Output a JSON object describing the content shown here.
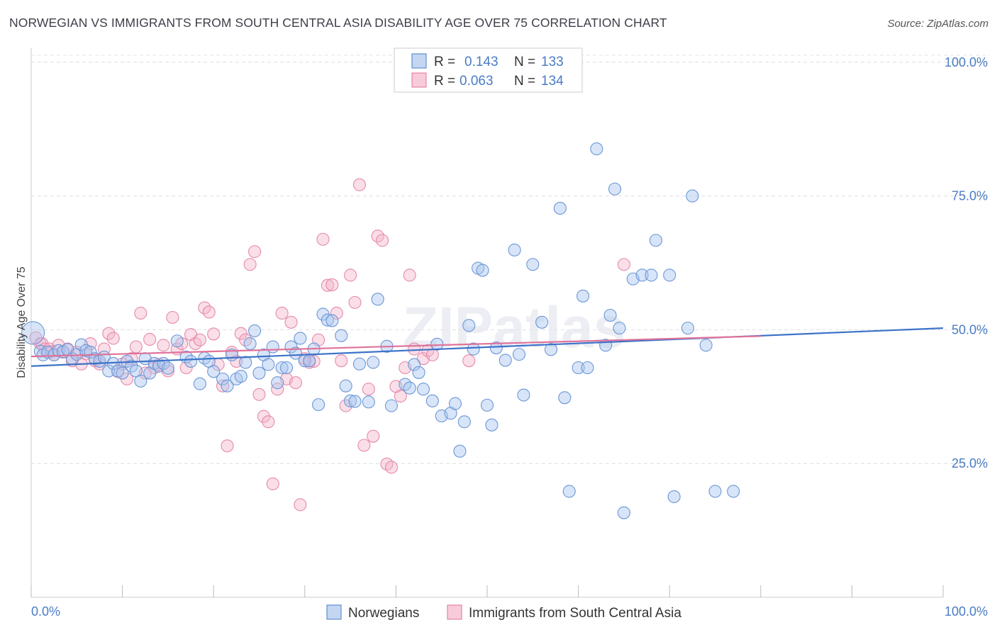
{
  "title": "NORWEGIAN VS IMMIGRANTS FROM SOUTH CENTRAL ASIA DISABILITY AGE OVER 75 CORRELATION CHART",
  "source": "Source: ZipAtlas.com",
  "watermark": "ZIPatlas",
  "colors": {
    "blue": "#4a7cc4",
    "blue_fill": "#a8c6ef",
    "pink": "#e0739a",
    "pink_fill": "#f5b6cc",
    "grid": "#dddddd",
    "label": "#4a7cc4"
  },
  "legend": {
    "entries": [
      {
        "r_label": "R =",
        "r_value": "0.143",
        "n_label": "N =",
        "n_value": "133",
        "color": "blue"
      },
      {
        "r_label": "R =",
        "r_value": "0.063",
        "n_label": "N =",
        "n_value": "134",
        "color": "pink"
      }
    ]
  },
  "bottom_legend": [
    "Norwegians",
    "Immigrants from South Central Asia"
  ],
  "chart_data": {
    "type": "scatter",
    "xlabel": "",
    "ylabel": "Disability Age Over 75",
    "xlim": [
      0,
      100
    ],
    "ylim": [
      0,
      105
    ],
    "x_tick_labels": [
      "0.0%",
      "100.0%"
    ],
    "y_tick_labels": [
      "100.0%",
      "75.0%",
      "50.0%",
      "25.0%"
    ],
    "y_ticks": [
      100,
      75,
      50,
      25
    ],
    "grid": true,
    "series": [
      {
        "name": "Norwegians",
        "color": "blue",
        "trend": [
          [
            0,
            43.2
          ],
          [
            100,
            50.3
          ]
        ],
        "points": [
          [
            0.2,
            49.4
          ],
          [
            1,
            46
          ],
          [
            1.3,
            45.3
          ],
          [
            1.8,
            45.8
          ],
          [
            2.5,
            45.3
          ],
          [
            3,
            46.1
          ],
          [
            3.5,
            45.9
          ],
          [
            4,
            46.3
          ],
          [
            4.5,
            44.6
          ],
          [
            5,
            45.4
          ],
          [
            5.5,
            47.2
          ],
          [
            6,
            46.1
          ],
          [
            6.5,
            45.8
          ],
          [
            7,
            44.6
          ],
          [
            7.5,
            44.1
          ],
          [
            8,
            44.9
          ],
          [
            8.5,
            42.3
          ],
          [
            9,
            43.7
          ],
          [
            9.5,
            42.3
          ],
          [
            10,
            41.9
          ],
          [
            10.5,
            44.1
          ],
          [
            11,
            43.2
          ],
          [
            11.5,
            42.3
          ],
          [
            12,
            40.4
          ],
          [
            12.5,
            44.6
          ],
          [
            13,
            41.9
          ],
          [
            13.5,
            43.7
          ],
          [
            14,
            43.2
          ],
          [
            14.5,
            43.7
          ],
          [
            15,
            42.8
          ],
          [
            16,
            47.9
          ],
          [
            17,
            44.9
          ],
          [
            17.5,
            44.1
          ],
          [
            18.5,
            39.9
          ],
          [
            19,
            44.7
          ],
          [
            19.5,
            44.1
          ],
          [
            20,
            42.2
          ],
          [
            21,
            40.8
          ],
          [
            21.5,
            39.5
          ],
          [
            22,
            45.3
          ],
          [
            22.5,
            40.8
          ],
          [
            23,
            41.3
          ],
          [
            23.5,
            43.9
          ],
          [
            24,
            47.4
          ],
          [
            24.5,
            49.8
          ],
          [
            25,
            41.9
          ],
          [
            25.5,
            45.3
          ],
          [
            26,
            43.5
          ],
          [
            26.5,
            46.8
          ],
          [
            27,
            40.1
          ],
          [
            27.5,
            42.9
          ],
          [
            28,
            42.9
          ],
          [
            28.5,
            46.8
          ],
          [
            29,
            45.6
          ],
          [
            29.5,
            48.4
          ],
          [
            30,
            44.2
          ],
          [
            30.5,
            44.2
          ],
          [
            31,
            46.4
          ],
          [
            31.5,
            36
          ],
          [
            32,
            52.9
          ],
          [
            32.5,
            51.8
          ],
          [
            33,
            51.7
          ],
          [
            34,
            48.9
          ],
          [
            34.5,
            39.5
          ],
          [
            35,
            36.7
          ],
          [
            35.5,
            36.6
          ],
          [
            36,
            43.6
          ],
          [
            37,
            36.5
          ],
          [
            37.5,
            43.9
          ],
          [
            38,
            55.7
          ],
          [
            39,
            46.9
          ],
          [
            39.5,
            35.8
          ],
          [
            41,
            39.8
          ],
          [
            41.5,
            39.1
          ],
          [
            42,
            43.5
          ],
          [
            42.5,
            42
          ],
          [
            43,
            38.9
          ],
          [
            44,
            36.7
          ],
          [
            44.5,
            47.3
          ],
          [
            45,
            33.9
          ],
          [
            46,
            34.4
          ],
          [
            46.5,
            36.2
          ],
          [
            47,
            27.3
          ],
          [
            47.5,
            32.8
          ],
          [
            48,
            50.8
          ],
          [
            48.5,
            46.4
          ],
          [
            49,
            61.5
          ],
          [
            49.5,
            61.1
          ],
          [
            50,
            35.9
          ],
          [
            50.5,
            32.2
          ],
          [
            51,
            46.6
          ],
          [
            52,
            44.3
          ],
          [
            53,
            64.9
          ],
          [
            53.5,
            45.4
          ],
          [
            54,
            37.8
          ],
          [
            55,
            62.2
          ],
          [
            56,
            51.4
          ],
          [
            57,
            46.3
          ],
          [
            58,
            72.7
          ],
          [
            58.5,
            37.3
          ],
          [
            59,
            19.8
          ],
          [
            60,
            42.9
          ],
          [
            60.5,
            56.3
          ],
          [
            61,
            42.9
          ],
          [
            62,
            83.8
          ],
          [
            63,
            47.1
          ],
          [
            63.5,
            52.7
          ],
          [
            64,
            76.3
          ],
          [
            64.5,
            50.3
          ],
          [
            65,
            15.8
          ],
          [
            66,
            59.5
          ],
          [
            67,
            60.2
          ],
          [
            68,
            60.2
          ],
          [
            68.5,
            66.7
          ],
          [
            70,
            60.2
          ],
          [
            70.5,
            18.8
          ],
          [
            72,
            50.3
          ],
          [
            72.5,
            75
          ],
          [
            74,
            47.1
          ],
          [
            75,
            19.8
          ],
          [
            77,
            19.8
          ]
        ]
      },
      {
        "name": "Immigrants from South Central Asia",
        "color": "pink",
        "trend": [
          [
            0,
            45
          ],
          [
            80,
            48.8
          ]
        ],
        "points": [
          [
            0.5,
            48.5
          ],
          [
            1,
            47.4
          ],
          [
            1.2,
            47.4
          ],
          [
            1.5,
            46.4
          ],
          [
            2,
            46.4
          ],
          [
            2.2,
            45.9
          ],
          [
            2.5,
            45.3
          ],
          [
            3,
            47.1
          ],
          [
            3.5,
            45.8
          ],
          [
            4,
            46.4
          ],
          [
            4.5,
            44.2
          ],
          [
            5,
            45.8
          ],
          [
            5.5,
            43.6
          ],
          [
            6,
            45.5
          ],
          [
            6.5,
            47.4
          ],
          [
            7,
            44.2
          ],
          [
            7.5,
            43.6
          ],
          [
            8,
            46.4
          ],
          [
            8.5,
            49.3
          ],
          [
            9,
            48.4
          ],
          [
            9.5,
            42.2
          ],
          [
            10,
            43.6
          ],
          [
            10.5,
            40.8
          ],
          [
            11,
            44.6
          ],
          [
            11.5,
            46.8
          ],
          [
            12,
            53.1
          ],
          [
            12.5,
            41.9
          ],
          [
            13,
            48.2
          ],
          [
            13.5,
            42.9
          ],
          [
            14,
            43.5
          ],
          [
            14.5,
            47.1
          ],
          [
            15,
            42.3
          ],
          [
            15.5,
            52.3
          ],
          [
            16,
            46.4
          ],
          [
            16.5,
            47.4
          ],
          [
            17,
            42.9
          ],
          [
            17.5,
            49.1
          ],
          [
            18,
            47.4
          ],
          [
            18.5,
            48.1
          ],
          [
            19,
            54.1
          ],
          [
            19.5,
            53.3
          ],
          [
            20,
            49.2
          ],
          [
            20.5,
            43.5
          ],
          [
            21,
            39.5
          ],
          [
            21.5,
            28.3
          ],
          [
            22,
            45.8
          ],
          [
            22.5,
            44.1
          ],
          [
            23,
            49.3
          ],
          [
            23.5,
            48.1
          ],
          [
            24,
            62.2
          ],
          [
            24.5,
            64.6
          ],
          [
            25,
            37.9
          ],
          [
            25.5,
            33.8
          ],
          [
            26,
            32.8
          ],
          [
            26.5,
            21.2
          ],
          [
            27,
            38.9
          ],
          [
            27.5,
            53.1
          ],
          [
            28,
            40.8
          ],
          [
            28.5,
            51.4
          ],
          [
            29,
            40.1
          ],
          [
            29.5,
            17.3
          ],
          [
            30,
            44.6
          ],
          [
            30.5,
            43.9
          ],
          [
            31,
            44.1
          ],
          [
            31.5,
            48.1
          ],
          [
            32,
            66.9
          ],
          [
            32.5,
            58.3
          ],
          [
            33,
            58.4
          ],
          [
            33.5,
            53.1
          ],
          [
            34,
            44.2
          ],
          [
            34.5,
            35.8
          ],
          [
            35,
            60.2
          ],
          [
            35.5,
            55.1
          ],
          [
            36,
            77.1
          ],
          [
            36.5,
            28.4
          ],
          [
            37,
            38.9
          ],
          [
            37.5,
            30.1
          ],
          [
            38,
            67.5
          ],
          [
            38.5,
            66.7
          ],
          [
            39,
            24.9
          ],
          [
            39.5,
            24.3
          ],
          [
            40,
            39.4
          ],
          [
            40.5,
            37.6
          ],
          [
            41,
            42.9
          ],
          [
            41.5,
            60.2
          ],
          [
            42,
            46.4
          ],
          [
            43,
            44.6
          ],
          [
            43.5,
            46.1
          ],
          [
            44,
            45.3
          ],
          [
            48,
            44.2
          ],
          [
            65,
            62.2
          ]
        ]
      }
    ]
  }
}
